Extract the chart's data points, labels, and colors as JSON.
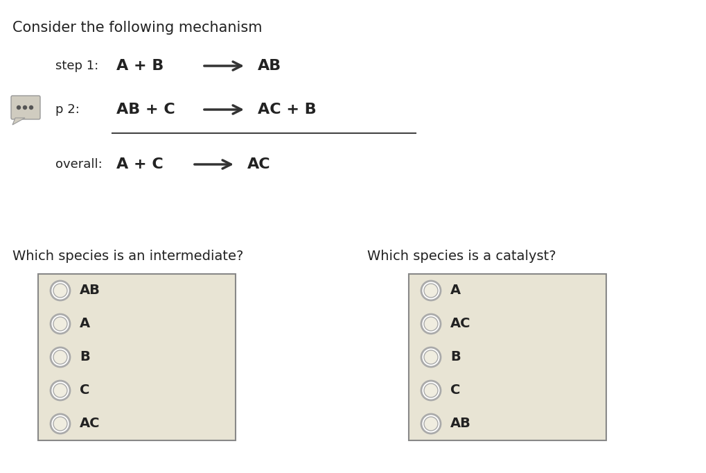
{
  "title": "Consider the following mechanism",
  "bg_color": "#ffffff",
  "step1_label": "step 1:",
  "step1_eq": "A + B",
  "step1_product": "AB",
  "step2_label": "p 2:",
  "step2_eq": "AB + C",
  "step2_product": "AC + B",
  "overall_label": "overall:",
  "overall_eq": "A + C",
  "overall_product": "AC",
  "q1_text": "Which species is an intermediate?",
  "q1_options": [
    "AB",
    "A",
    "B",
    "C",
    "AC"
  ],
  "q2_text": "Which species is a catalyst?",
  "q2_options": [
    "A",
    "AC",
    "B",
    "C",
    "AB"
  ],
  "box_color": "#e8e4d4",
  "box_edge_color": "#888888",
  "radio_outer_color": "#aaaaaa",
  "radio_inner_color": "#f0ede0",
  "text_color": "#222222",
  "title_fontsize": 15,
  "label_fontsize": 13,
  "eq_fontsize": 16,
  "option_fontsize": 14,
  "q_fontsize": 14
}
